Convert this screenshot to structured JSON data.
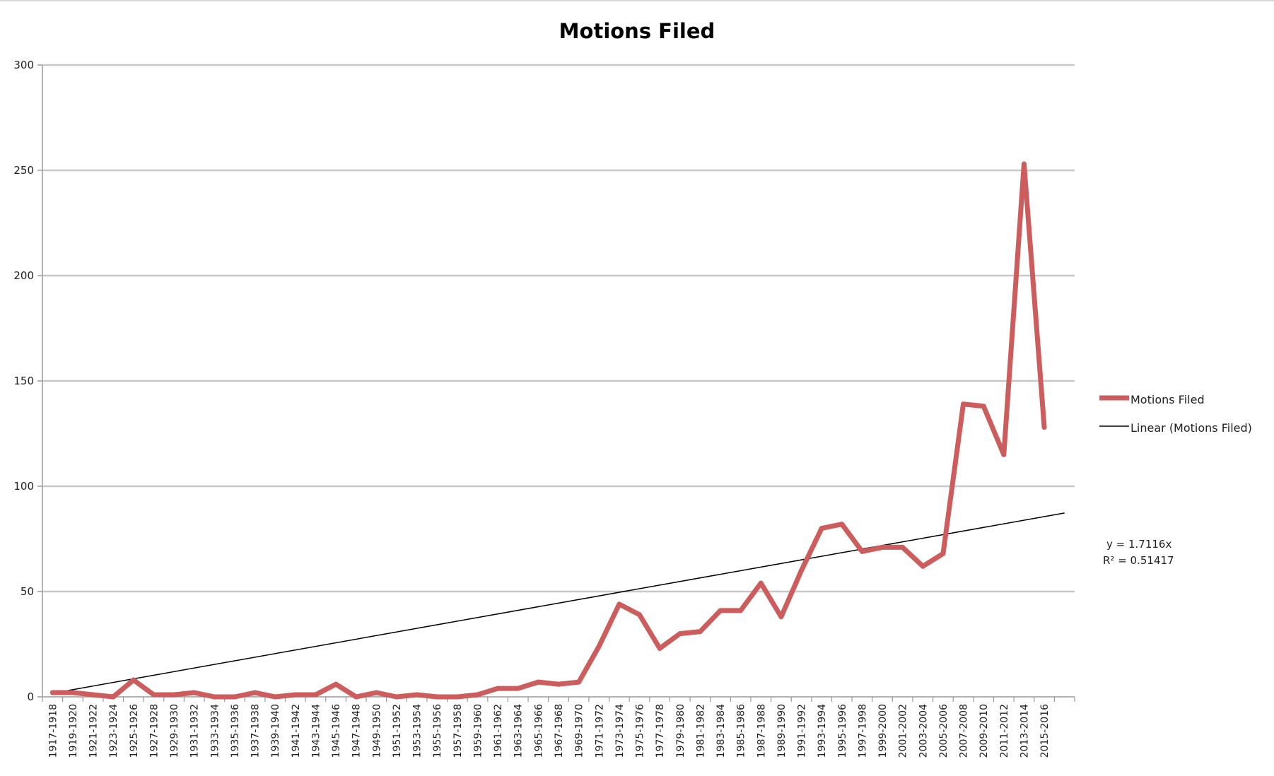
{
  "chart_data": {
    "type": "line",
    "title": "Motions Filed",
    "xlabel": "",
    "ylabel": "",
    "ylim": [
      0,
      300
    ],
    "yticks": [
      0,
      50,
      100,
      150,
      200,
      250,
      300
    ],
    "grid": "horizontal",
    "legend_position": "right",
    "categories": [
      "1917-1918",
      "1919-1920",
      "1921-1922",
      "1923-1924",
      "1925-1926",
      "1927-1928",
      "1929-1930",
      "1931-1932",
      "1933-1934",
      "1935-1936",
      "1937-1938",
      "1939-1940",
      "1941-1942",
      "1943-1944",
      "1945-1946",
      "1947-1948",
      "1949-1950",
      "1951-1952",
      "1953-1954",
      "1955-1956",
      "1957-1958",
      "1959-1960",
      "1961-1962",
      "1963-1964",
      "1965-1966",
      "1967-1968",
      "1969-1970",
      "1971-1972",
      "1973-1974",
      "1975-1976",
      "1977-1978",
      "1979-1980",
      "1981-1982",
      "1983-1984",
      "1985-1986",
      "1987-1988",
      "1989-1990",
      "1991-1992",
      "1993-1994",
      "1995-1996",
      "1997-1998",
      "1999-2000",
      "2001-2002",
      "2003-2004",
      "2005-2006",
      "2007-2008",
      "2009-2010",
      "2011-2012",
      "2013-2014",
      "2015-2016"
    ],
    "series": [
      {
        "name": "Motions Filed",
        "color": "#cd5c5c",
        "values": [
          2,
          2,
          1,
          0,
          8,
          1,
          1,
          2,
          0,
          0,
          2,
          0,
          1,
          1,
          6,
          0,
          2,
          0,
          1,
          0,
          0,
          1,
          4,
          4,
          7,
          6,
          7,
          24,
          44,
          39,
          23,
          30,
          31,
          41,
          41,
          54,
          38,
          60,
          80,
          82,
          69,
          71,
          71,
          62,
          68,
          139,
          138,
          115,
          253,
          128
        ]
      }
    ],
    "trendline": {
      "name": "Linear (Motions Filed)",
      "color": "#000000",
      "type": "linear",
      "slope": 1.7116,
      "equation": "y = 1.7116x",
      "r2_label": "R² = 0.51417"
    }
  }
}
